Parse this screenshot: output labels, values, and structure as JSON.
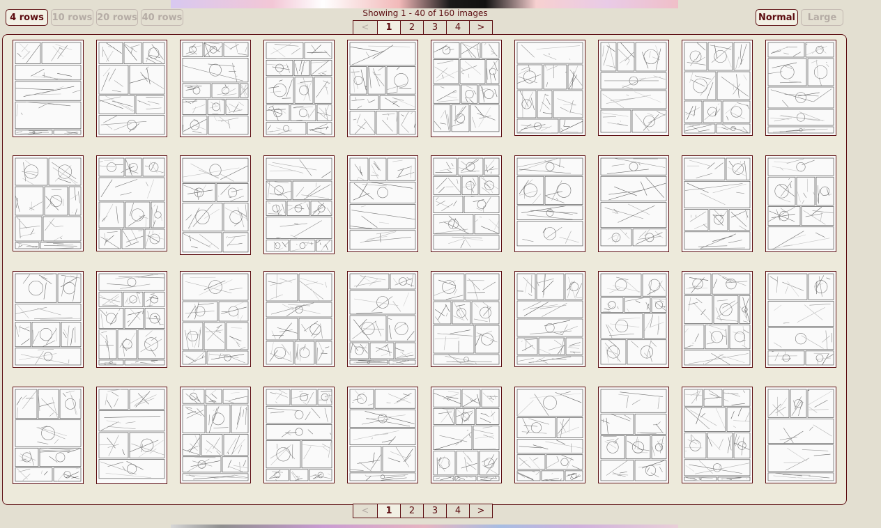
{
  "row_options": [
    "4 rows",
    "10 rows",
    "20 rows",
    "40 rows"
  ],
  "size_options": [
    "Normal",
    "Large"
  ],
  "showing_text": "Showing 1 - 40 of 160 images",
  "pager": {
    "prev": "<",
    "pages": [
      "1",
      "2",
      "3",
      "4"
    ],
    "current": "1",
    "next": ">"
  },
  "thumbnail_count": 40,
  "thumbnail_content": "manga-page",
  "colors": {
    "background": "#e3dfd1",
    "panel": "#edeadb",
    "border": "#5c0d11",
    "text": "#5c0d11",
    "disabled": "#b5aca5"
  }
}
